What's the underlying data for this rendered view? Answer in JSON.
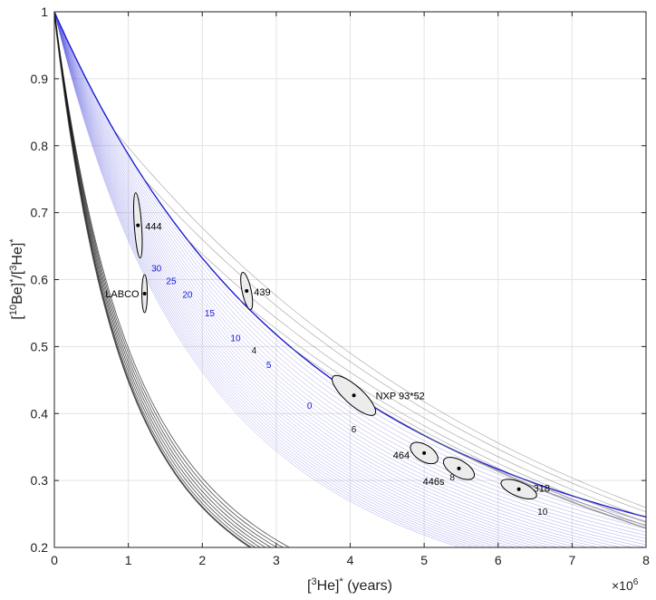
{
  "chart_data": {
    "type": "line",
    "title": "",
    "xlabel": "[3He]* (years)",
    "ylabel": "[10Be]*/[3He]*",
    "x_multiplier": "×10^6",
    "xlim": [
      0,
      8
    ],
    "ylim": [
      0.2,
      1.0
    ],
    "x_ticks": [
      0,
      1,
      2,
      3,
      4,
      5,
      6,
      7,
      8
    ],
    "x_tick_labels": [
      "0",
      "1",
      "2",
      "3",
      "4",
      "5",
      "6",
      "7",
      "8"
    ],
    "y_ticks": [
      0.2,
      0.3,
      0.4,
      0.5,
      0.6,
      0.7,
      0.8,
      0.9,
      1.0
    ],
    "y_tick_labels": [
      "0.2",
      "0.3",
      "0.4",
      "0.5",
      "0.6",
      "0.7",
      "0.8",
      "0.9",
      "1"
    ],
    "grid": true,
    "burial_contours": {
      "color": "#1a1ad6",
      "erosion_labels": [
        "0",
        "5",
        "10",
        "15",
        "20",
        "25",
        "30"
      ]
    },
    "burial_isochrons": {
      "color": "#555555",
      "labels": [
        "4",
        "6",
        "8",
        "10"
      ]
    },
    "samples": [
      {
        "name": "444",
        "x": 1.13,
        "y": 0.681,
        "rx": 0.07,
        "ry": 0.05,
        "angle": 0
      },
      {
        "name": "LABCO",
        "x": 1.22,
        "y": 0.579,
        "rx": 0.045,
        "ry": 0.03,
        "angle": 0
      },
      {
        "name": "439",
        "x": 2.6,
        "y": 0.583,
        "rx": 0.075,
        "ry": 0.028,
        "angle": 0
      },
      {
        "name": "NXP 93*52",
        "x": 4.05,
        "y": 0.427,
        "rx": 0.4,
        "ry": 0.018,
        "angle": -35
      },
      {
        "name": "464",
        "x": 5.0,
        "y": 0.341,
        "rx": 0.2,
        "ry": 0.012,
        "angle": -30
      },
      {
        "name": "446s",
        "x": 5.47,
        "y": 0.318,
        "rx": 0.22,
        "ry": 0.012,
        "angle": -28
      },
      {
        "name": "318",
        "x": 6.28,
        "y": 0.287,
        "rx": 0.25,
        "ry": 0.011,
        "angle": -20
      }
    ]
  }
}
